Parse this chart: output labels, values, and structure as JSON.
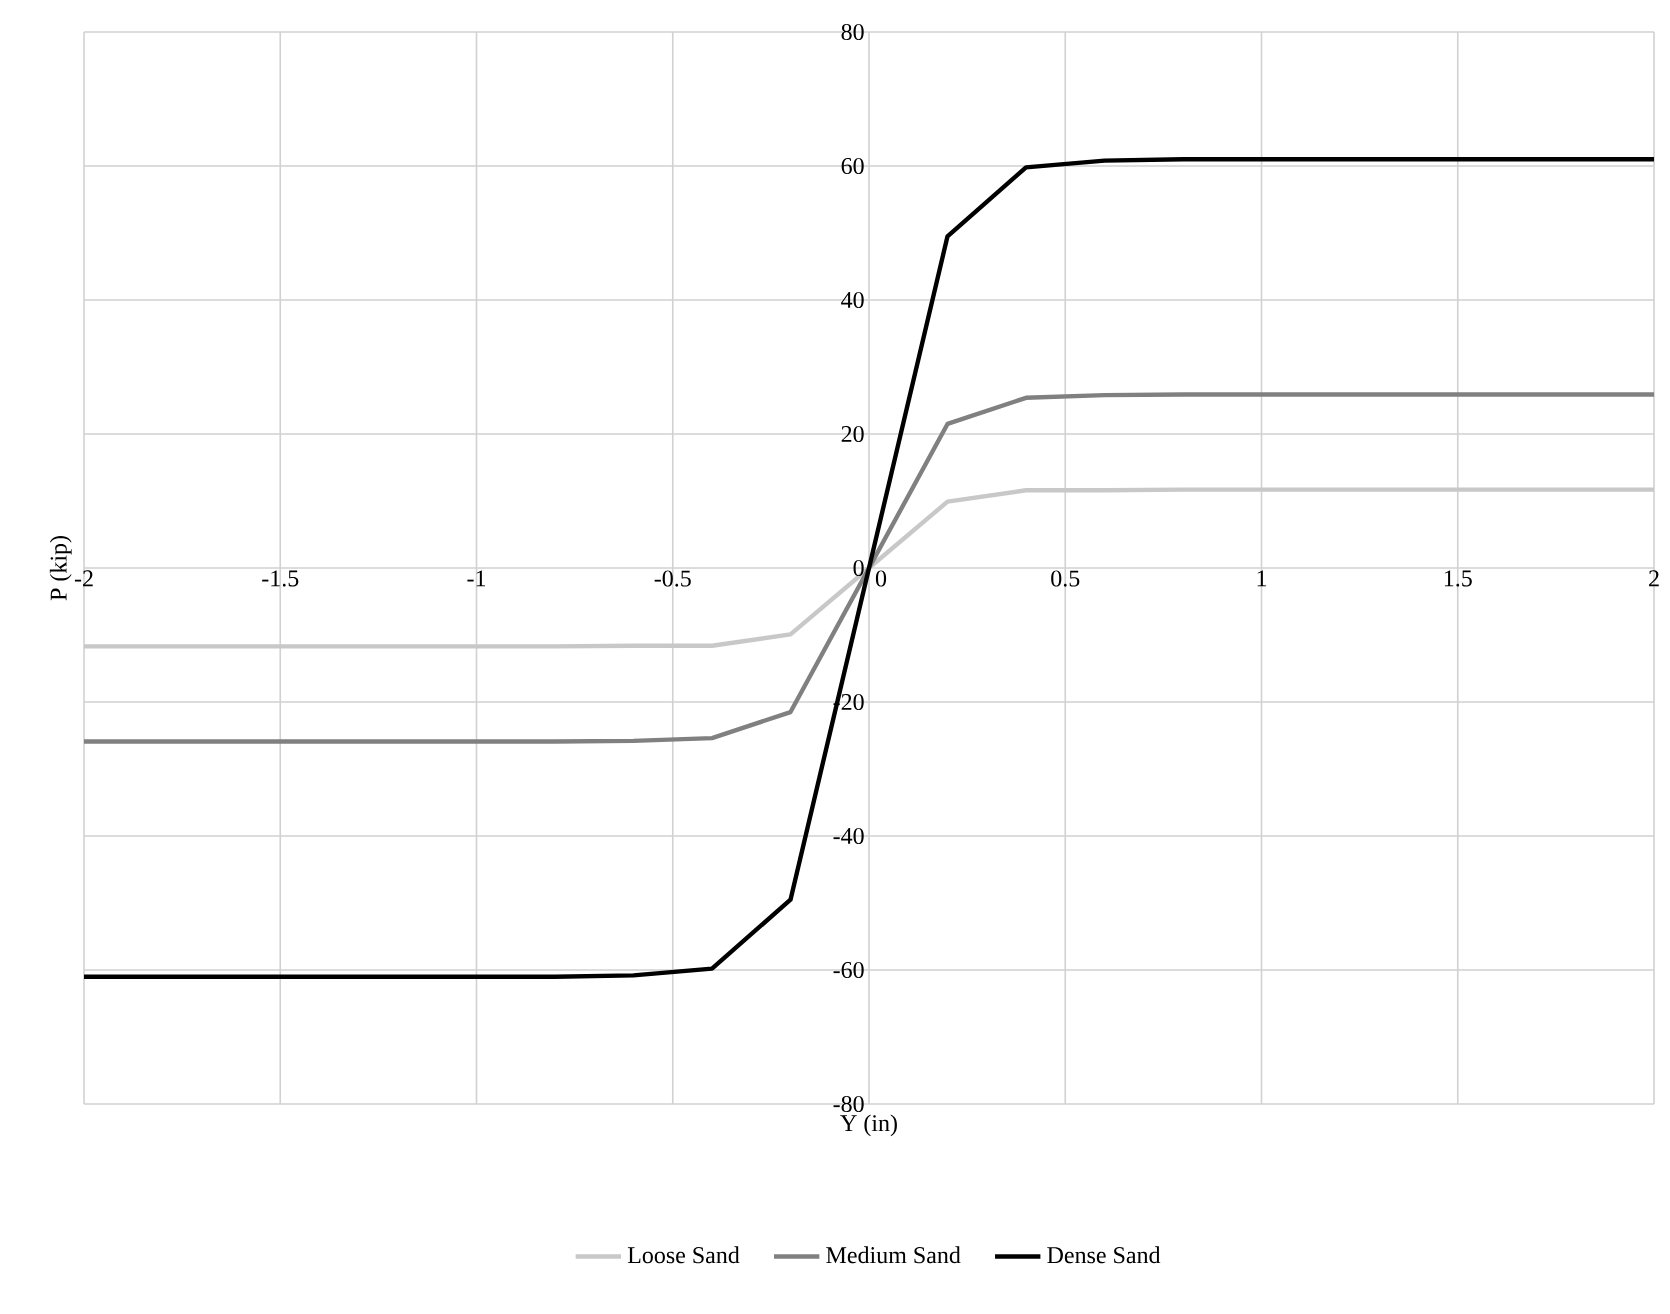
{
  "chart_data": {
    "type": "line",
    "xlabel": "Y (in)",
    "ylabel": "P (kip)",
    "x": [
      -2,
      -1.8,
      -1.6,
      -1.4,
      -1.2,
      -1,
      -0.8,
      -0.6,
      -0.4,
      -0.2,
      0,
      0.2,
      0.4,
      0.6,
      0.8,
      1,
      1.2,
      1.4,
      1.6,
      1.8,
      2
    ],
    "series": [
      {
        "name": "Loose Sand",
        "color": "#c8c8c8",
        "values": [
          -11.7,
          -11.7,
          -11.7,
          -11.7,
          -11.7,
          -11.7,
          -11.7,
          -11.6,
          -11.6,
          -9.9,
          0,
          9.9,
          11.6,
          11.6,
          11.7,
          11.7,
          11.7,
          11.7,
          11.7,
          11.7,
          11.7
        ]
      },
      {
        "name": "Medium Sand",
        "color": "#808080",
        "values": [
          -25.9,
          -25.9,
          -25.9,
          -25.9,
          -25.9,
          -25.9,
          -25.9,
          -25.8,
          -25.4,
          -21.5,
          0,
          21.5,
          25.4,
          25.8,
          25.9,
          25.9,
          25.9,
          25.9,
          25.9,
          25.9,
          25.9
        ]
      },
      {
        "name": "Dense Sand",
        "color": "#000000",
        "values": [
          -61,
          -61,
          -61,
          -61,
          -61,
          -61,
          -61,
          -60.8,
          -59.8,
          -49.5,
          0,
          49.5,
          59.8,
          60.8,
          61,
          61,
          61,
          61,
          61,
          61,
          61
        ]
      }
    ],
    "xlim": [
      -2,
      2
    ],
    "ylim": [
      -80,
      80
    ],
    "xticks": [
      -2,
      -1.5,
      -1,
      -0.5,
      0,
      0.5,
      1,
      1.5,
      2
    ],
    "yticks": [
      -80,
      -60,
      -40,
      -20,
      0,
      20,
      40,
      60,
      80
    ],
    "grid": true,
    "legend": "bottom",
    "marker": "none",
    "line_style": "solid"
  }
}
